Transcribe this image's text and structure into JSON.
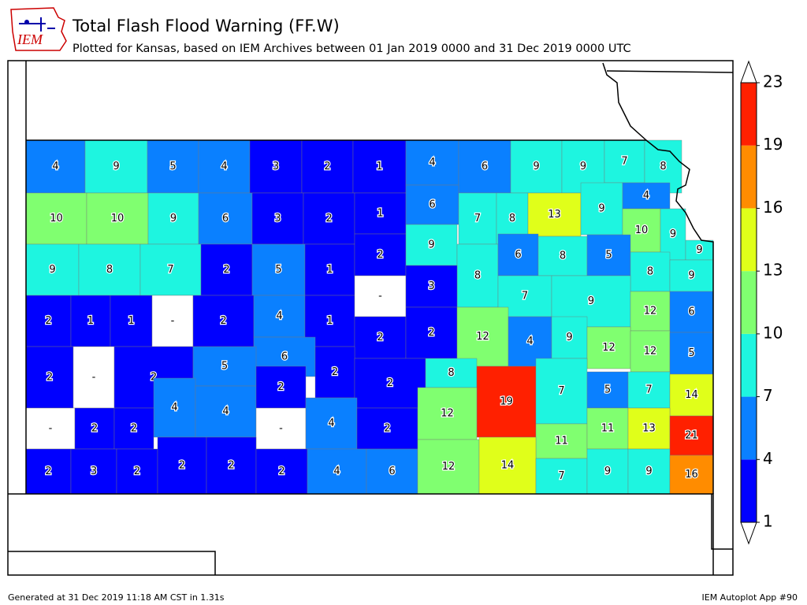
{
  "header": {
    "title": "Total Flash Flood Warning (FF.W)",
    "subtitle": "Plotted for Kansas, based on IEM Archives  between 01 Jan 2019 0000 and 31 Dec 2019 0000 UTC",
    "logo_text": "IEM"
  },
  "map": {
    "county_values": [
      4,
      9,
      5,
      4,
      3,
      2,
      1,
      4,
      6,
      9,
      9,
      7,
      8,
      10,
      10,
      9,
      6,
      3,
      2,
      1,
      6,
      7,
      8,
      13,
      9,
      4,
      10,
      9,
      9,
      9,
      8,
      7,
      2,
      5,
      1,
      2,
      9,
      8,
      6,
      8,
      5,
      8,
      9,
      2,
      1,
      1,
      null,
      2,
      4,
      1,
      null,
      3,
      7,
      9,
      12,
      6,
      2,
      null,
      2,
      2,
      2,
      12,
      4,
      9,
      12,
      12,
      5,
      6,
      2,
      5,
      4,
      4,
      2,
      2,
      8,
      19,
      7,
      5,
      7,
      14,
      null,
      2,
      2,
      null,
      4,
      2,
      12,
      11,
      11,
      13,
      21,
      2,
      3,
      2,
      2,
      2,
      2,
      4,
      6,
      12,
      14,
      7,
      9,
      9,
      16
    ],
    "no_data_label": "-"
  },
  "colorbar": {
    "levels": [
      1,
      4,
      7,
      10,
      13,
      16,
      19,
      23
    ],
    "colors": [
      "#0000ff",
      "#0a80ff",
      "#1ef5e0",
      "#80ff70",
      "#e0ff1a",
      "#ff8c00",
      "#ff2000"
    ],
    "no_data_color": "#ffffff"
  },
  "footer": {
    "left": "Generated at 31 Dec 2019 11:18 AM CST in 1.31s",
    "right": "IEM Autoplot App #90"
  }
}
